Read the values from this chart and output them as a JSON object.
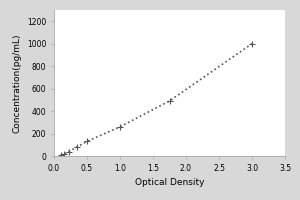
{
  "xlabel": "Optical Density",
  "ylabel": "Concentration(pg/mL)",
  "xlim": [
    0,
    3.5
  ],
  "ylim": [
    0,
    1300
  ],
  "xticks": [
    0,
    0.5,
    1.0,
    1.5,
    2.0,
    2.5,
    3.0,
    3.5
  ],
  "yticks": [
    0,
    200,
    400,
    600,
    800,
    1000,
    1200
  ],
  "x_data": [
    0.1,
    0.15,
    0.22,
    0.35,
    0.5,
    1.0,
    1.75,
    3.0
  ],
  "y_data": [
    5,
    15,
    40,
    80,
    130,
    260,
    490,
    1000
  ],
  "line_color": "#555555",
  "marker": "P",
  "marker_size": 3,
  "line_style": ":",
  "line_width": 1.2,
  "bg_color": "#d8d8d8",
  "plot_bg_color": "#ffffff",
  "tick_fontsize": 5.5,
  "label_fontsize": 6.5,
  "spine_color": "#aaaaaa"
}
